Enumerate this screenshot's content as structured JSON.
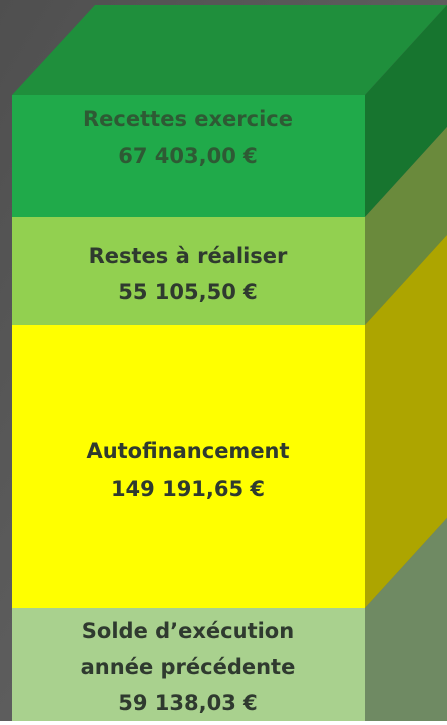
{
  "blocks": [
    {
      "label": "Recettes exercice",
      "amount": "67 403,00 €"
    },
    {
      "label": "Restes à réaliser",
      "amount": "55 105,50 €"
    },
    {
      "label": "Autofinancement",
      "amount": "149 191,65 €"
    },
    {
      "label": "Solde d’exécution",
      "label2": "année précédente",
      "amount": "59 138,03 €"
    }
  ]
}
